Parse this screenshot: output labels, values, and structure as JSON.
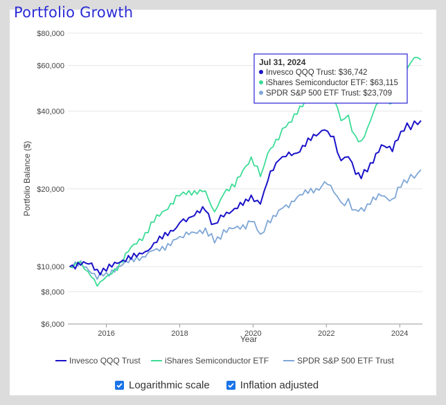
{
  "page_title": "Portfolio Growth",
  "controls": {
    "log_scale": {
      "label": "Logarithmic scale",
      "checked": true
    },
    "inflation": {
      "label": "Inflation adjusted",
      "checked": true
    }
  },
  "tooltip": {
    "date": "Jul 31, 2024",
    "rows": [
      {
        "text": "Invesco QQQ Trust: $36,742",
        "color": "#1a12c8"
      },
      {
        "text": "iShares Semiconductor ETF: $63,115",
        "color": "#3ddc97"
      },
      {
        "text": "SPDR S&P 500 ETF Trust: $23,709",
        "color": "#7ea6d6"
      }
    ]
  },
  "chart_data": {
    "type": "line",
    "title": "Portfolio Growth",
    "xlabel": "Year",
    "ylabel": "Portfolio Balance ($)",
    "yscale": "log",
    "ylim": [
      6000,
      80000
    ],
    "xlim": [
      2014.95,
      2024.62
    ],
    "yticks": [
      6000,
      8000,
      10000,
      20000,
      40000,
      60000,
      80000
    ],
    "ytick_labels": [
      "$6,000",
      "$8,000",
      "$10,000",
      "$20,000",
      "$40,000",
      "$60,000",
      "$80,000"
    ],
    "xticks": [
      2016,
      2018,
      2020,
      2022,
      2024
    ],
    "xtick_labels": [
      "2016",
      "2018",
      "2020",
      "2022",
      "2024"
    ],
    "grid": "horizontal",
    "legend_position": "bottom",
    "series": [
      {
        "name": "Invesco QQQ Trust",
        "color": "#1a12c8",
        "points": [
          [
            2015.0,
            10000
          ],
          [
            2015.3,
            10300
          ],
          [
            2015.6,
            10100
          ],
          [
            2015.75,
            9600
          ],
          [
            2016.0,
            9700
          ],
          [
            2016.3,
            10400
          ],
          [
            2016.6,
            10900
          ],
          [
            2016.9,
            11000
          ],
          [
            2017.3,
            12200
          ],
          [
            2017.6,
            13200
          ],
          [
            2017.9,
            14300
          ],
          [
            2018.1,
            15200
          ],
          [
            2018.4,
            15800
          ],
          [
            2018.7,
            16700
          ],
          [
            2018.95,
            14300
          ],
          [
            2019.2,
            16100
          ],
          [
            2019.5,
            16600
          ],
          [
            2019.8,
            17700
          ],
          [
            2019.95,
            18800
          ],
          [
            2020.2,
            17400
          ],
          [
            2020.4,
            21700
          ],
          [
            2020.7,
            25800
          ],
          [
            2020.9,
            27000
          ],
          [
            2021.2,
            27800
          ],
          [
            2021.5,
            30500
          ],
          [
            2021.8,
            32600
          ],
          [
            2021.95,
            34600
          ],
          [
            2022.2,
            31000
          ],
          [
            2022.4,
            25600
          ],
          [
            2022.6,
            27000
          ],
          [
            2022.8,
            23000
          ],
          [
            2022.95,
            22100
          ],
          [
            2023.2,
            25000
          ],
          [
            2023.5,
            29000
          ],
          [
            2023.8,
            28500
          ],
          [
            2023.95,
            32000
          ],
          [
            2024.2,
            34800
          ],
          [
            2024.4,
            35500
          ],
          [
            2024.58,
            36742
          ]
        ]
      },
      {
        "name": "iShares Semiconductor ETF",
        "color": "#3ddc97",
        "points": [
          [
            2015.0,
            10000
          ],
          [
            2015.3,
            10400
          ],
          [
            2015.5,
            9400
          ],
          [
            2015.75,
            8600
          ],
          [
            2016.0,
            9000
          ],
          [
            2016.3,
            10000
          ],
          [
            2016.6,
            11500
          ],
          [
            2016.9,
            12500
          ],
          [
            2017.3,
            15000
          ],
          [
            2017.6,
            16600
          ],
          [
            2017.9,
            18500
          ],
          [
            2018.1,
            19500
          ],
          [
            2018.4,
            19000
          ],
          [
            2018.7,
            19800
          ],
          [
            2018.95,
            16000
          ],
          [
            2019.2,
            19500
          ],
          [
            2019.5,
            20500
          ],
          [
            2019.8,
            24500
          ],
          [
            2019.95,
            26500
          ],
          [
            2020.2,
            22500
          ],
          [
            2020.4,
            27000
          ],
          [
            2020.7,
            32000
          ],
          [
            2020.9,
            35000
          ],
          [
            2021.2,
            40000
          ],
          [
            2021.5,
            44000
          ],
          [
            2021.8,
            48000
          ],
          [
            2021.95,
            55000
          ],
          [
            2022.2,
            45000
          ],
          [
            2022.4,
            37000
          ],
          [
            2022.6,
            38000
          ],
          [
            2022.8,
            31000
          ],
          [
            2022.95,
            30000
          ],
          [
            2023.2,
            37000
          ],
          [
            2023.5,
            46000
          ],
          [
            2023.8,
            43000
          ],
          [
            2023.95,
            49000
          ],
          [
            2024.2,
            58000
          ],
          [
            2024.4,
            65000
          ],
          [
            2024.58,
            63115
          ]
        ]
      },
      {
        "name": "SPDR S&P 500 ETF Trust",
        "color": "#7ea6d6",
        "points": [
          [
            2015.0,
            10000
          ],
          [
            2015.3,
            10200
          ],
          [
            2015.6,
            9600
          ],
          [
            2015.75,
            9200
          ],
          [
            2016.0,
            9300
          ],
          [
            2016.3,
            10000
          ],
          [
            2016.6,
            10400
          ],
          [
            2016.9,
            10800
          ],
          [
            2017.3,
            11500
          ],
          [
            2017.6,
            12000
          ],
          [
            2017.9,
            12700
          ],
          [
            2018.1,
            13200
          ],
          [
            2018.4,
            13400
          ],
          [
            2018.7,
            14000
          ],
          [
            2018.95,
            12500
          ],
          [
            2019.2,
            13600
          ],
          [
            2019.5,
            14000
          ],
          [
            2019.8,
            14500
          ],
          [
            2019.95,
            15300
          ],
          [
            2020.2,
            13200
          ],
          [
            2020.4,
            14700
          ],
          [
            2020.7,
            16600
          ],
          [
            2020.9,
            17200
          ],
          [
            2021.2,
            18400
          ],
          [
            2021.5,
            19500
          ],
          [
            2021.8,
            20200
          ],
          [
            2021.95,
            21200
          ],
          [
            2022.2,
            19800
          ],
          [
            2022.4,
            17500
          ],
          [
            2022.6,
            17800
          ],
          [
            2022.8,
            16300
          ],
          [
            2022.95,
            16600
          ],
          [
            2023.2,
            17600
          ],
          [
            2023.5,
            19000
          ],
          [
            2023.8,
            18200
          ],
          [
            2023.95,
            19800
          ],
          [
            2024.2,
            21800
          ],
          [
            2024.4,
            22400
          ],
          [
            2024.58,
            23709
          ]
        ]
      }
    ]
  }
}
